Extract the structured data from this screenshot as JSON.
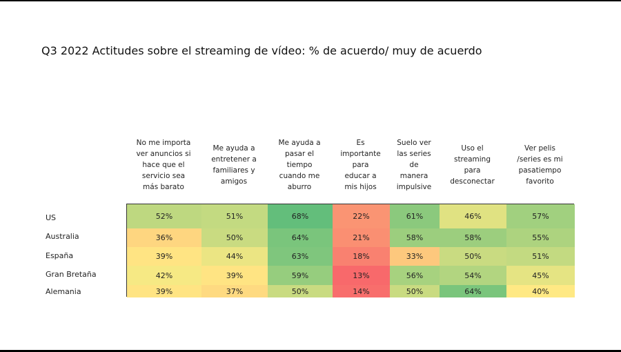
{
  "title": "Q3 2022 Actitudes sobre el streaming de vídeo: % de acuerdo/ muy de acuerdo",
  "columns": [
    "No me importa ver anuncios si hace que el servicio sea más barato",
    "Me ayuda a entretener a familiares y amigos",
    "Me ayuda a pasar el tiempo cuando me aburro",
    "Es importante para educar a mis hijos",
    "Suelo ver las series de manera impulsive",
    "Uso el streaming para desconectar",
    "Ver pelis /series es mi pasatiempo favorito"
  ],
  "column_lines": [
    [
      "No me importa",
      "ver anuncios si",
      "hace que el",
      "servicio sea",
      "más barato"
    ],
    [
      "Me ayuda a",
      "entretener a",
      "familiares y",
      "amigos"
    ],
    [
      "Me ayuda a",
      "pasar el",
      "tiempo",
      "cuando me",
      "aburro"
    ],
    [
      "Es",
      "importante",
      "para",
      "educar a",
      "mis hijos"
    ],
    [
      "Suelo ver",
      "las series",
      "de",
      "manera",
      "impulsive"
    ],
    [
      "Uso el",
      "streaming",
      "para",
      "desconectar"
    ],
    [
      "Ver pelis",
      "/series es mi",
      "pasatiempo",
      "favorito"
    ]
  ],
  "rows": [
    "US",
    "Australia",
    "España",
    "Gran Bretaña",
    "Alemania"
  ],
  "cells": [
    [
      "52%",
      "51%",
      "68%",
      "22%",
      "61%",
      "46%",
      "57%"
    ],
    [
      "36%",
      "50%",
      "64%",
      "21%",
      "58%",
      "58%",
      "55%"
    ],
    [
      "39%",
      "44%",
      "63%",
      "18%",
      "33%",
      "50%",
      "51%"
    ],
    [
      "42%",
      "39%",
      "59%",
      "13%",
      "56%",
      "54%",
      "45%"
    ],
    [
      "39%",
      "37%",
      "50%",
      "14%",
      "50%",
      "64%",
      "40%"
    ]
  ],
  "chart_data": {
    "type": "heatmap",
    "title": "Q3 2022 Actitudes sobre el streaming de vídeo: % de acuerdo/ muy de acuerdo",
    "x_categories": [
      "No me importa ver anuncios si hace que el servicio sea más barato",
      "Me ayuda a entretener a familiares y amigos",
      "Me ayuda a pasar el tiempo cuando me aburro",
      "Es importante para educar a mis hijos",
      "Suelo ver las series de manera impulsive",
      "Uso el streaming para desconectar",
      "Ver pelis /series es mi pasatiempo favorito"
    ],
    "y_categories": [
      "US",
      "Australia",
      "España",
      "Gran Bretaña",
      "Alemania"
    ],
    "values": [
      [
        52,
        51,
        68,
        22,
        61,
        46,
        57
      ],
      [
        36,
        50,
        64,
        21,
        58,
        58,
        55
      ],
      [
        39,
        44,
        63,
        18,
        33,
        50,
        51
      ],
      [
        42,
        39,
        59,
        13,
        56,
        54,
        45
      ],
      [
        39,
        37,
        50,
        14,
        50,
        64,
        40
      ]
    ],
    "unit": "%",
    "color_scale": {
      "low": "#f8696b",
      "mid": "#ffeb84",
      "high": "#63be7b"
    }
  }
}
